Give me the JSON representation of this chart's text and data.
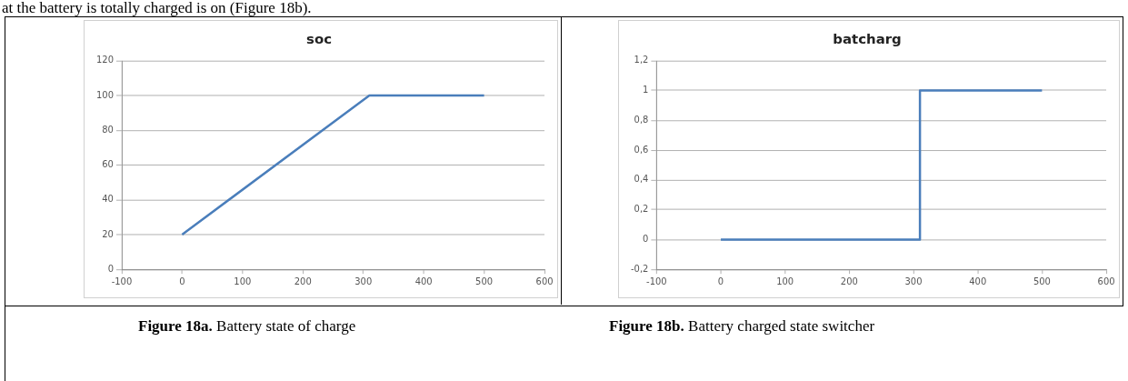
{
  "chart_data": [
    {
      "type": "line",
      "title": "soc",
      "x": [
        0,
        310,
        500
      ],
      "values": [
        20,
        100,
        100
      ],
      "color": "#4a7ebb",
      "xlim": [
        -100,
        600
      ],
      "xticks": [
        -100,
        0,
        100,
        200,
        300,
        400,
        500,
        600
      ],
      "ylim": [
        0,
        120
      ],
      "yticks": [
        0,
        20,
        40,
        60,
        80,
        100,
        120
      ],
      "grid": "y",
      "annotations": [
        "at the battery is totally charged is on (Figure 18b).",
        "Figure 18a. Battery state of charge"
      ]
    },
    {
      "type": "line",
      "title": "batcharg",
      "x": [
        0,
        310,
        310,
        500
      ],
      "values": [
        0,
        0,
        1,
        1
      ],
      "color": "#4a7ebb",
      "xlim": [
        -100,
        600
      ],
      "xticks": [
        -100,
        0,
        100,
        200,
        300,
        400,
        500,
        600
      ],
      "ylim": [
        -0.2,
        1.2
      ],
      "yticks": [
        {
          "value": -0.2,
          "label": "-0,2"
        },
        0,
        {
          "value": 0.2,
          "label": "0,2"
        },
        {
          "value": 0.4,
          "label": "0,4"
        },
        {
          "value": 0.6,
          "label": "0,6"
        },
        {
          "value": 0.8,
          "label": "0,8"
        },
        1,
        {
          "value": 1.2,
          "label": "1,2"
        }
      ],
      "grid": "y",
      "annotations": [
        "Figure 18b. Battery charged state switcher"
      ]
    }
  ]
}
